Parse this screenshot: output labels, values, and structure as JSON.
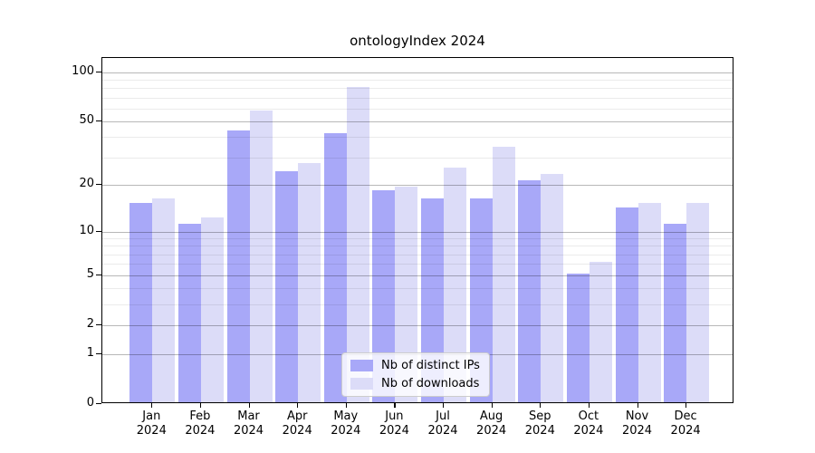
{
  "title": "ontologyIndex 2024",
  "chart_data": {
    "type": "bar",
    "title": "ontologyIndex 2024",
    "categories": [
      {
        "month": "Jan",
        "year": "2024"
      },
      {
        "month": "Feb",
        "year": "2024"
      },
      {
        "month": "Mar",
        "year": "2024"
      },
      {
        "month": "Apr",
        "year": "2024"
      },
      {
        "month": "May",
        "year": "2024"
      },
      {
        "month": "Jun",
        "year": "2024"
      },
      {
        "month": "Jul",
        "year": "2024"
      },
      {
        "month": "Aug",
        "year": "2024"
      },
      {
        "month": "Sep",
        "year": "2024"
      },
      {
        "month": "Oct",
        "year": "2024"
      },
      {
        "month": "Nov",
        "year": "2024"
      },
      {
        "month": "Dec",
        "year": "2024"
      }
    ],
    "series": [
      {
        "name": "Nb of distinct IPs",
        "color": "#a8a8f8",
        "values": [
          15,
          11,
          43,
          24,
          41,
          18,
          16,
          16,
          21,
          5,
          14,
          11
        ]
      },
      {
        "name": "Nb of downloads",
        "color": "#dcdcf8",
        "values": [
          16,
          12,
          57,
          27,
          79,
          19,
          25,
          34,
          23,
          6,
          15,
          15
        ]
      }
    ],
    "yscale": "log1p",
    "yticks": [
      0,
      1,
      2,
      5,
      10,
      20,
      50,
      100
    ],
    "minor_yticks": [
      3,
      4,
      6,
      7,
      8,
      9,
      30,
      40,
      60,
      70,
      80,
      90
    ],
    "ylim": [
      0,
      122
    ],
    "grid": true,
    "legend_position": "lower center"
  }
}
